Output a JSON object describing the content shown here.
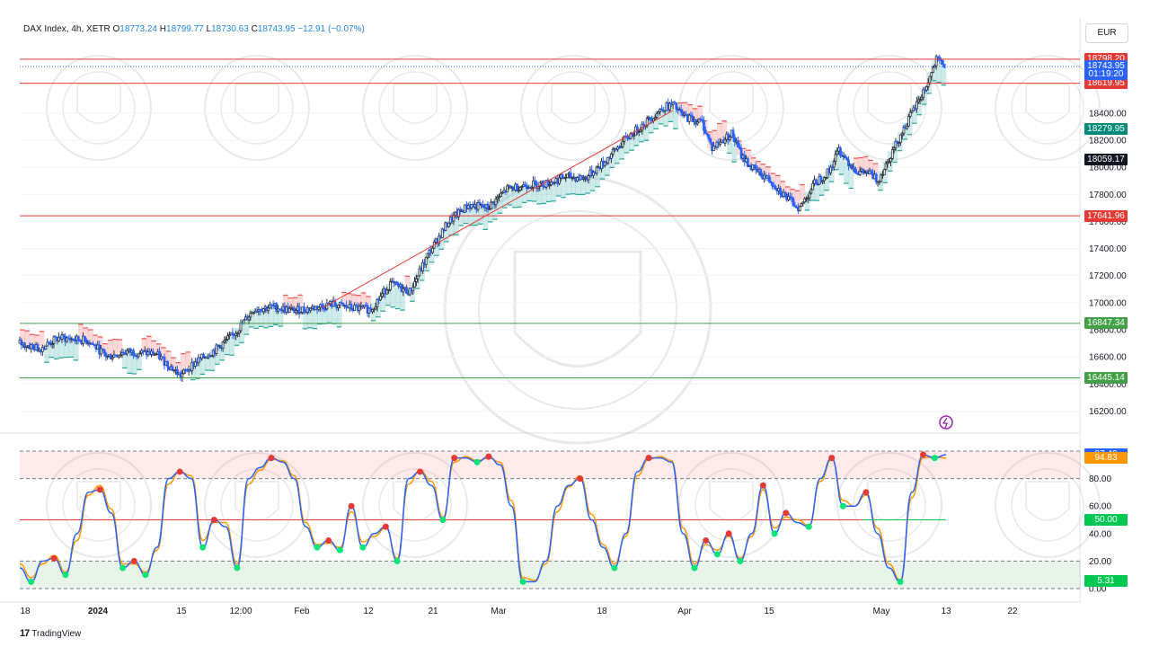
{
  "header": {
    "symbol": "DAX Index, 4h, XETR",
    "open_label": "O",
    "open": "18773.24",
    "high_label": "H",
    "high": "18799.77",
    "low_label": "L",
    "low": "18730.63",
    "close_label": "C",
    "close": "18743.95",
    "change": "−12.91 (−0.07%)"
  },
  "currency_button": "EUR",
  "branding": "TradingView",
  "colors": {
    "up_candle": "#2a2e39",
    "down_candle": "#2962ff",
    "red_line": "#e53935",
    "green_line": "#43a047",
    "cloud_up": "#26a69a",
    "cloud_down": "#ef5350",
    "stoch_k": "#2962ff",
    "stoch_d": "#ff9800"
  },
  "chart_data": [
    {
      "type": "candlestick",
      "title": "",
      "y_range": [
        16050,
        18870
      ],
      "y_ticks": [
        16200,
        16400,
        16600,
        16800,
        17000,
        17200,
        17400,
        17600,
        17800,
        18000,
        18200,
        18400
      ],
      "y_tick_labels": [
        "16200.00",
        "16400.00",
        "16600.00",
        "16800.00",
        "17000.00",
        "17200.00",
        "17400.00",
        "17600.00",
        "17800.00",
        "18000.00",
        "18200.00",
        "18400.00"
      ],
      "x_tick_labels": [
        "18",
        "2024",
        "15",
        "12:00",
        "Feb",
        "12",
        "21",
        "Mar",
        "18",
        "Apr",
        "15",
        "May",
        "13",
        "22"
      ],
      "close_path": [
        [
          0,
          16700
        ],
        [
          4,
          16660
        ],
        [
          8,
          16740
        ],
        [
          14,
          16720
        ],
        [
          18,
          16600
        ],
        [
          22,
          16640
        ],
        [
          28,
          16620
        ],
        [
          33,
          16460
        ],
        [
          36,
          16560
        ],
        [
          40,
          16650
        ],
        [
          44,
          16770
        ],
        [
          48,
          16950
        ],
        [
          52,
          16970
        ],
        [
          56,
          16940
        ],
        [
          60,
          16960
        ],
        [
          64,
          16990
        ],
        [
          68,
          16960
        ],
        [
          72,
          16950
        ],
        [
          76,
          17140
        ],
        [
          80,
          17080
        ],
        [
          84,
          17370
        ],
        [
          88,
          17600
        ],
        [
          92,
          17720
        ],
        [
          96,
          17700
        ],
        [
          100,
          17840
        ],
        [
          104,
          17870
        ],
        [
          108,
          17880
        ],
        [
          112,
          17930
        ],
        [
          116,
          17920
        ],
        [
          120,
          18040
        ],
        [
          124,
          18200
        ],
        [
          128,
          18320
        ],
        [
          132,
          18440
        ],
        [
          134,
          18460
        ],
        [
          136,
          18380
        ],
        [
          140,
          18330
        ],
        [
          142,
          18140
        ],
        [
          146,
          18250
        ],
        [
          148,
          18090
        ],
        [
          150,
          18000
        ],
        [
          154,
          17900
        ],
        [
          158,
          17750
        ],
        [
          160,
          17700
        ],
        [
          163,
          17880
        ],
        [
          166,
          17970
        ],
        [
          168,
          18130
        ],
        [
          170,
          18040
        ],
        [
          172,
          17960
        ],
        [
          174,
          17960
        ],
        [
          176,
          17900
        ],
        [
          180,
          18190
        ],
        [
          183,
          18400
        ],
        [
          186,
          18600
        ],
        [
          188,
          18790
        ],
        [
          190,
          18743.95
        ]
      ],
      "horizontal_levels": [
        {
          "value": 18798.2,
          "label": "18798.20",
          "color": "#e53935",
          "line": true
        },
        {
          "value": 18619.95,
          "label": "18619.95",
          "color": "#e53935",
          "line": true
        },
        {
          "value": 17641.96,
          "label": "17641.96",
          "color": "#e53935",
          "line": true
        },
        {
          "value": 16847.34,
          "label": "16847.34",
          "color": "#43a047",
          "line": true
        },
        {
          "value": 16445.14,
          "label": "16445.14",
          "color": "#43a047",
          "line": true
        }
      ],
      "price_tags": [
        {
          "value": 18743.95,
          "label": "18743.95",
          "color": "#2962ff"
        },
        {
          "value": 18690,
          "label": "01:19:20",
          "color": "#2962ff"
        },
        {
          "value": 18279.95,
          "label": "18279.95",
          "color": "#00897b"
        },
        {
          "value": 18059.17,
          "label": "18059.17",
          "color": "#131722"
        }
      ],
      "cloud": "trailing band, green below price when rising, red above price when falling"
    },
    {
      "type": "line",
      "title": "",
      "y_range": [
        0,
        100
      ],
      "y_ticks": [
        0,
        20,
        40,
        60,
        80
      ],
      "y_tick_labels": [
        "0.00",
        "20.00",
        "40.00",
        "60.00",
        "80.00"
      ],
      "overbought": 80,
      "oversold": 20,
      "mid": 50,
      "series": [
        {
          "name": "",
          "values": [
            15,
            5,
            20,
            22,
            10,
            40,
            70,
            72,
            55,
            15,
            20,
            10,
            30,
            80,
            85,
            80,
            30,
            50,
            45,
            15,
            80,
            88,
            95,
            92,
            80,
            45,
            30,
            35,
            28,
            60,
            30,
            40,
            45,
            20,
            80,
            85,
            75,
            50,
            95,
            95,
            92,
            96,
            90,
            60,
            5,
            5,
            20,
            60,
            75,
            80,
            50,
            30,
            15,
            40,
            85,
            95,
            95,
            92,
            40,
            15,
            35,
            25,
            40,
            20,
            40,
            75,
            40,
            55,
            48,
            45,
            80,
            95,
            60,
            60,
            70,
            40,
            15,
            5,
            70,
            97.42,
            95,
            97.42
          ]
        },
        {
          "name": "",
          "values": [
            18,
            8,
            18,
            24,
            12,
            35,
            68,
            75,
            58,
            18,
            18,
            12,
            28,
            76,
            85,
            82,
            35,
            48,
            48,
            18,
            76,
            86,
            94,
            93,
            82,
            48,
            32,
            33,
            30,
            56,
            34,
            38,
            44,
            22,
            76,
            86,
            78,
            52,
            92,
            96,
            93,
            95,
            92,
            64,
            8,
            6,
            18,
            56,
            74,
            82,
            54,
            32,
            18,
            38,
            82,
            94,
            96,
            93,
            44,
            18,
            32,
            28,
            38,
            22,
            38,
            72,
            44,
            52,
            50,
            46,
            78,
            94,
            64,
            60,
            68,
            44,
            18,
            6,
            66,
            95,
            96,
            94.83
          ]
        }
      ],
      "value_tags": [
        {
          "value": 97.42,
          "label": "97.42",
          "color": "#2962ff"
        },
        {
          "value": 94.83,
          "label": "94.83",
          "color": "#ff9800"
        },
        {
          "value": 50.0,
          "label": "50.00",
          "color": "#00c853"
        },
        {
          "value": 5.31,
          "label": "5.31",
          "color": "#00c853"
        }
      ]
    }
  ]
}
